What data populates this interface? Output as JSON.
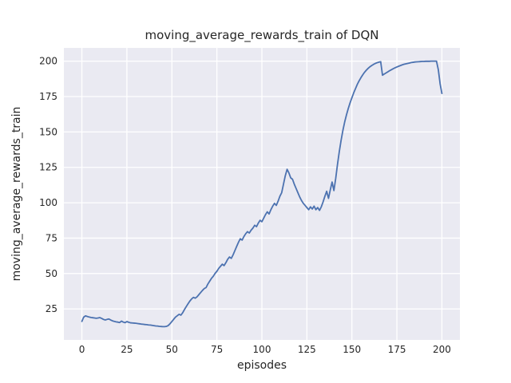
{
  "figure": {
    "background": "#ffffff"
  },
  "chart_data": {
    "type": "line",
    "title": "moving_average_rewards_train of DQN",
    "xlabel": "episodes",
    "ylabel": "moving_average_rewards_train",
    "xlim": [
      -10,
      210
    ],
    "ylim": [
      3.125,
      209.375
    ],
    "xticks": [
      0,
      25,
      50,
      75,
      100,
      125,
      150,
      175,
      200
    ],
    "yticks": [
      25,
      50,
      75,
      100,
      125,
      150,
      175,
      200
    ],
    "grid": true,
    "legend_position": "none",
    "style": {
      "plot_background": "#eaeaf2",
      "grid_color": "#ffffff",
      "line_color": "#4c72b0",
      "text_color": "#262626",
      "line_width": 1.8
    },
    "series": [
      {
        "name": "moving_average_rewards_train",
        "x": [
          0,
          1,
          2,
          3,
          4,
          5,
          6,
          7,
          8,
          9,
          10,
          11,
          12,
          13,
          14,
          15,
          16,
          17,
          18,
          19,
          20,
          21,
          22,
          23,
          24,
          25,
          26,
          27,
          28,
          29,
          30,
          31,
          32,
          33,
          34,
          35,
          36,
          37,
          38,
          39,
          40,
          41,
          42,
          43,
          44,
          45,
          46,
          47,
          48,
          49,
          50,
          51,
          52,
          53,
          54,
          55,
          56,
          57,
          58,
          59,
          60,
          61,
          62,
          63,
          64,
          65,
          66,
          67,
          68,
          69,
          70,
          71,
          72,
          73,
          74,
          75,
          76,
          77,
          78,
          79,
          80,
          81,
          82,
          83,
          84,
          85,
          86,
          87,
          88,
          89,
          90,
          91,
          92,
          93,
          94,
          95,
          96,
          97,
          98,
          99,
          100,
          101,
          102,
          103,
          104,
          105,
          106,
          107,
          108,
          109,
          110,
          111,
          112,
          113,
          114,
          115,
          116,
          117,
          118,
          119,
          120,
          121,
          122,
          123,
          124,
          125,
          126,
          127,
          128,
          129,
          130,
          131,
          132,
          133,
          134,
          135,
          136,
          137,
          138,
          139,
          140,
          141,
          142,
          143,
          144,
          145,
          146,
          147,
          148,
          149,
          150,
          151,
          152,
          153,
          154,
          155,
          156,
          157,
          158,
          159,
          160,
          161,
          162,
          163,
          164,
          165,
          166,
          167,
          168,
          169,
          170,
          171,
          172,
          173,
          174,
          175,
          176,
          177,
          178,
          179,
          180,
          181,
          182,
          183,
          184,
          185,
          186,
          187,
          188,
          189,
          190,
          191,
          192,
          193,
          194,
          195,
          196,
          197,
          198,
          199,
          200
        ],
        "y": [
          16.2,
          19.2,
          20.1,
          19.7,
          19.3,
          19.0,
          18.8,
          18.6,
          18.4,
          18.6,
          18.9,
          18.3,
          17.6,
          17.2,
          17.6,
          17.9,
          17.2,
          16.6,
          16.2,
          15.9,
          15.7,
          15.4,
          16.4,
          15.7,
          15.3,
          16.1,
          15.6,
          15.2,
          15.1,
          15.0,
          14.9,
          14.7,
          14.5,
          14.3,
          14.2,
          14.0,
          13.9,
          13.7,
          13.6,
          13.4,
          13.2,
          13.0,
          12.9,
          12.7,
          12.6,
          12.5,
          12.5,
          12.7,
          13.3,
          14.6,
          16.1,
          17.7,
          19.2,
          20.2,
          21.2,
          20.6,
          22.3,
          24.6,
          26.7,
          28.7,
          30.6,
          32.1,
          33.2,
          32.6,
          33.6,
          35.1,
          36.6,
          38.1,
          39.4,
          40.1,
          42.6,
          44.6,
          46.6,
          48.1,
          50.1,
          51.6,
          53.6,
          55.1,
          56.6,
          55.6,
          57.7,
          60.1,
          61.7,
          60.7,
          63.2,
          66.2,
          69.2,
          72.1,
          74.6,
          73.6,
          76.1,
          78.1,
          79.6,
          78.6,
          80.6,
          82.1,
          84.1,
          83.1,
          85.6,
          87.6,
          86.6,
          89.1,
          91.6,
          93.6,
          92.1,
          95.1,
          97.6,
          99.6,
          98.1,
          101.1,
          104.6,
          107.1,
          113.1,
          119.1,
          123.6,
          121.1,
          117.6,
          116.6,
          113.1,
          110.1,
          107.1,
          104.1,
          101.6,
          99.6,
          98.1,
          96.6,
          95.1,
          97.1,
          95.6,
          97.6,
          95.1,
          96.6,
          94.6,
          97.1,
          100.6,
          104.6,
          108.1,
          103.1,
          109.1,
          114.6,
          108.6,
          117.1,
          127.1,
          136.1,
          144.1,
          151.1,
          157.1,
          162.1,
          166.6,
          170.6,
          174.1,
          177.6,
          180.6,
          183.6,
          186.1,
          188.3,
          190.3,
          192.1,
          193.6,
          194.9,
          196.0,
          196.9,
          197.7,
          198.4,
          198.9,
          199.3,
          199.6,
          190.1,
          190.9,
          191.7,
          192.5,
          193.3,
          194.0,
          194.7,
          195.3,
          195.9,
          196.4,
          196.9,
          197.4,
          197.8,
          198.1,
          198.4,
          198.7,
          199.0,
          199.2,
          199.4,
          199.5,
          199.6,
          199.7,
          199.8,
          199.8,
          199.9,
          199.9,
          199.9,
          200.0,
          200.0,
          200.0,
          200.0,
          194.0,
          184.0,
          177.2
        ]
      }
    ]
  }
}
